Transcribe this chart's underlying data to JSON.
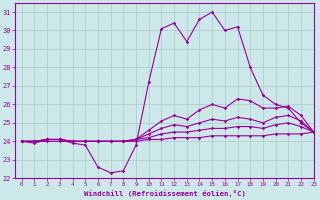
{
  "xlabel": "Windchill (Refroidissement éolien,°C)",
  "xlim": [
    -0.5,
    23
  ],
  "ylim": [
    22,
    31.5
  ],
  "yticks": [
    22,
    23,
    24,
    25,
    26,
    27,
    28,
    29,
    30,
    31
  ],
  "xticks": [
    0,
    1,
    2,
    3,
    4,
    5,
    6,
    7,
    8,
    9,
    10,
    11,
    12,
    13,
    14,
    15,
    16,
    17,
    18,
    19,
    20,
    21,
    22,
    23
  ],
  "background_color": "#cce8e8",
  "grid_color": "#aacccc",
  "line_color": "#990099",
  "series": [
    [
      24.0,
      23.9,
      24.1,
      24.1,
      23.9,
      23.8,
      22.6,
      22.3,
      22.4,
      23.8,
      27.2,
      30.1,
      30.4,
      29.4,
      30.6,
      31.0,
      30.0,
      30.2,
      28.0,
      26.5,
      26.0,
      25.8,
      25.0,
      24.5
    ],
    [
      24.0,
      24.0,
      24.1,
      24.1,
      24.0,
      24.0,
      24.0,
      24.0,
      24.0,
      24.1,
      24.6,
      25.1,
      25.4,
      25.2,
      25.7,
      26.0,
      25.8,
      26.3,
      26.2,
      25.8,
      25.8,
      25.9,
      25.4,
      24.5
    ],
    [
      24.0,
      24.0,
      24.1,
      24.1,
      24.0,
      24.0,
      24.0,
      24.0,
      24.0,
      24.1,
      24.4,
      24.7,
      24.9,
      24.8,
      25.0,
      25.2,
      25.1,
      25.3,
      25.2,
      25.0,
      25.3,
      25.4,
      25.1,
      24.5
    ],
    [
      24.0,
      24.0,
      24.1,
      24.1,
      24.0,
      24.0,
      24.0,
      24.0,
      24.0,
      24.1,
      24.2,
      24.4,
      24.5,
      24.5,
      24.6,
      24.7,
      24.7,
      24.8,
      24.8,
      24.7,
      24.9,
      25.0,
      24.8,
      24.5
    ],
    [
      24.0,
      24.0,
      24.0,
      24.0,
      24.0,
      24.0,
      24.0,
      24.0,
      24.0,
      24.0,
      24.1,
      24.1,
      24.2,
      24.2,
      24.2,
      24.3,
      24.3,
      24.3,
      24.3,
      24.3,
      24.4,
      24.4,
      24.4,
      24.5
    ]
  ]
}
